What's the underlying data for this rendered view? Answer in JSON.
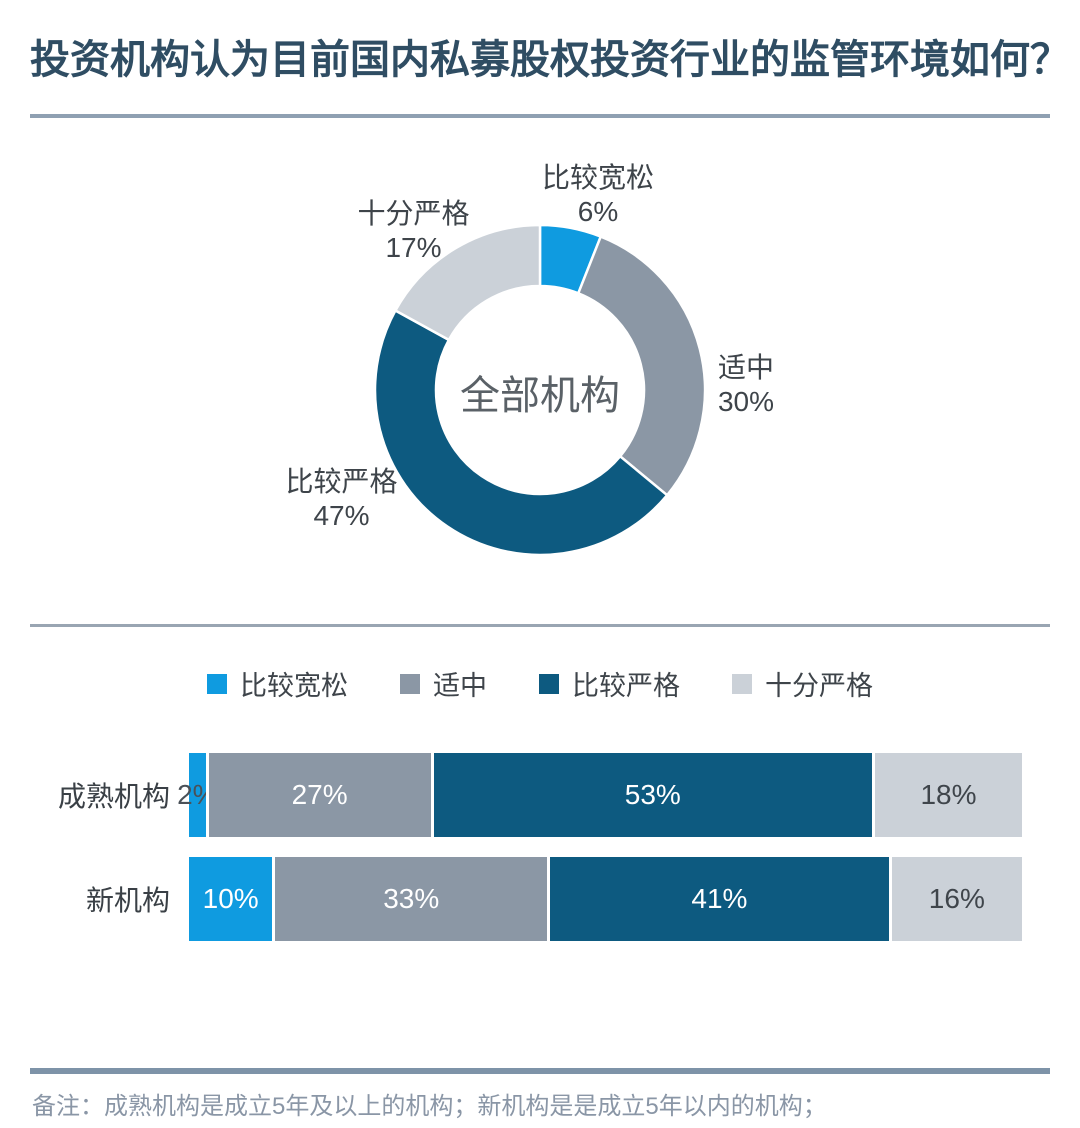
{
  "header": {
    "title": "投资机构认为目前国内私募股权投资行业的监管环境如何？"
  },
  "colors": {
    "accent_blue": "#0F9BE0",
    "slate_gray": "#8B97A5",
    "dark_blue": "#0D5A80",
    "light_gray": "#CBD1D8",
    "title_text": "#2F4D63",
    "divider": "#8FA0B2",
    "divider_heavy": "#7E93A8",
    "note_text": "#8A96A6"
  },
  "chart_data": [
    {
      "type": "pie",
      "subtype": "donut",
      "center_label": "全部机构",
      "labels": [
        "比较宽松",
        "适中",
        "比较严格",
        "十分严格"
      ],
      "values": [
        6,
        30,
        47,
        17
      ],
      "display_values": [
        "6%",
        "30%",
        "47%",
        "17%"
      ],
      "colors": [
        "#0F9BE0",
        "#8B97A5",
        "#0D5A80",
        "#CBD1D8"
      ],
      "unit": "%",
      "start_angle_deg": -90,
      "direction": "clockwise"
    },
    {
      "type": "bar",
      "subtype": "horizontal-stacked",
      "categories": [
        "成熟机构",
        "新机构"
      ],
      "series": [
        {
          "name": "比较宽松",
          "color": "#0F9BE0",
          "values": [
            2,
            10
          ],
          "display_values": [
            "2%",
            "10%"
          ]
        },
        {
          "name": "适中",
          "color": "#8B97A5",
          "values": [
            27,
            33
          ],
          "display_values": [
            "27%",
            "33%"
          ]
        },
        {
          "name": "比较严格",
          "color": "#0D5A80",
          "values": [
            53,
            41
          ],
          "display_values": [
            "53%",
            "41%"
          ]
        },
        {
          "name": "十分严格",
          "color": "#CBD1D8",
          "values": [
            18,
            16
          ],
          "display_values": [
            "18%",
            "16%"
          ]
        }
      ],
      "xlim": [
        0,
        100
      ],
      "unit": "%",
      "legend_position": "top",
      "value_labels": "inside"
    }
  ],
  "footer": {
    "note": "备注：成熟机构是成立5年及以上的机构；新机构是是成立5年以内的机构；"
  }
}
